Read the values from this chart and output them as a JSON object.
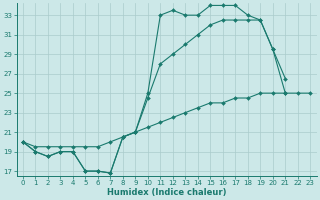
{
  "xlabel": "Humidex (Indice chaleur)",
  "bg_color": "#cce8e8",
  "line_color": "#1a7a6e",
  "grid_color": "#aacccc",
  "xlim": [
    -0.5,
    23.5
  ],
  "ylim": [
    16.5,
    34.2
  ],
  "yticks": [
    17,
    19,
    21,
    23,
    25,
    27,
    29,
    31,
    33
  ],
  "xticks": [
    0,
    1,
    2,
    3,
    4,
    5,
    6,
    7,
    8,
    9,
    10,
    11,
    12,
    13,
    14,
    15,
    16,
    17,
    18,
    19,
    20,
    21,
    22,
    23
  ],
  "series": [
    [
      20.0,
      19.0,
      18.5,
      19.0,
      19.0,
      17.0,
      17.0,
      16.8,
      20.5,
      21.0,
      25.0,
      33.0,
      33.5,
      33.0,
      33.0,
      34.0,
      34.0,
      34.0,
      33.0,
      32.5,
      29.5,
      26.5,
      null,
      null
    ],
    [
      20.0,
      19.0,
      18.5,
      19.0,
      19.0,
      17.0,
      17.0,
      16.8,
      20.5,
      21.0,
      24.5,
      28.0,
      29.0,
      30.0,
      31.0,
      32.0,
      32.5,
      32.5,
      32.5,
      32.5,
      29.5,
      25.0,
      null,
      null
    ],
    [
      20.0,
      19.5,
      19.5,
      19.5,
      19.5,
      19.5,
      19.5,
      20.0,
      20.5,
      21.0,
      21.5,
      22.0,
      22.5,
      23.0,
      23.5,
      24.0,
      24.0,
      24.5,
      24.5,
      25.0,
      25.0,
      25.0,
      25.0,
      25.0
    ]
  ]
}
